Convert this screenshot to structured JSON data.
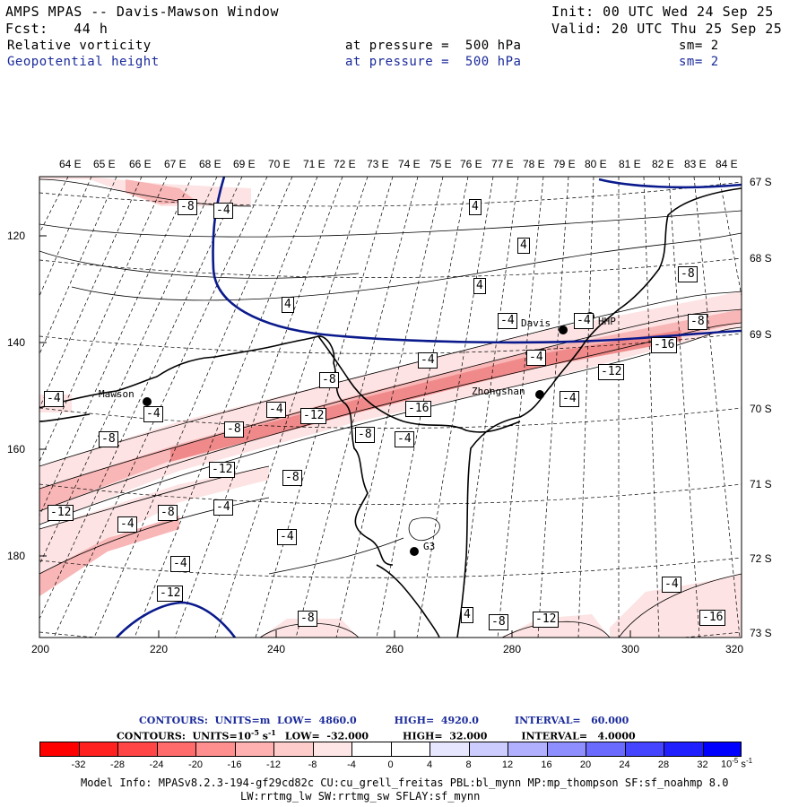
{
  "header": {
    "title": "AMPS MPAS -- Davis-Mawson Window",
    "init": "Init: 00 UTC Wed 24 Sep 25",
    "fcst": "Fcst:   44 h",
    "valid": "Valid: 20 UTC Thu 25 Sep 25",
    "field1_name": "Relative vorticity",
    "field1_level": "at pressure =  500 hPa",
    "field1_sm": "sm= 2",
    "field2_name": "Geopotential height",
    "field2_level": "at pressure =  500 hPa",
    "field2_sm": "sm= 2"
  },
  "map": {
    "lon_labels": [
      "64 E",
      "65 E",
      "66 E",
      "67 E",
      "68 E",
      "69 E",
      "70 E",
      "71 E",
      "72 E",
      "73 E",
      "74 E",
      "75 E",
      "76 E",
      "77 E",
      "78 E",
      "79 E",
      "80 E",
      "81 E",
      "82 E",
      "83 E",
      "84 E"
    ],
    "lat_labels": [
      "67 S",
      "68 S",
      "69 S",
      "70 S",
      "71 S",
      "72 S",
      "73 S"
    ],
    "y_ticks": [
      "120",
      "140",
      "160",
      "180"
    ],
    "x_ticks": [
      "200",
      "220",
      "240",
      "260",
      "280",
      "300",
      "320"
    ],
    "stations": [
      "Mawson",
      "Davis",
      "Zhongshan",
      "G3",
      "HHP"
    ],
    "contour_labels": [
      "-8",
      "-4",
      "4",
      "4",
      "4",
      "4",
      "-4",
      "-4",
      "-4",
      "-8",
      "-8",
      "-4",
      "-12",
      "-16",
      "-8",
      "-8",
      "-4",
      "-4",
      "-12",
      "-16",
      "-8",
      "-4",
      "-8",
      "-12",
      "-4",
      "-8",
      "-8",
      "-4",
      "-4",
      "-12",
      "-4",
      "-4",
      "-8",
      "-12",
      "-8",
      "4",
      "-4",
      "-8",
      "-16",
      "-12",
      "-4"
    ],
    "colors": {
      "geopotential": "#0a1a8c",
      "coast": "#000000",
      "shade_light": "#fde3e3",
      "shade_mid": "#f8b6b6",
      "shade_dark": "#f08a8a"
    }
  },
  "legend": {
    "line1_prefix": "CONTOURS:  UNITS=m  LOW=  4860.0",
    "line1_high": "HIGH=  4920.0",
    "line1_interval": "INTERVAL=   60.000",
    "line2_prefix": "CONTOURS:  UNITS=10",
    "line2_exp": "-5",
    "line2_unit": " s",
    "line2_exp2": "-1",
    "line2_low": "LOW=  -32.000",
    "line2_high": "HIGH=  32.000",
    "line2_interval": "INTERVAL=   4.0000",
    "colorbar_labels": [
      "-32",
      "-28",
      "-24",
      "-20",
      "-16",
      "-12",
      "-8",
      "-4",
      "0",
      "4",
      "8",
      "12",
      "16",
      "20",
      "24",
      "28",
      "32"
    ],
    "colorbar_units": "10",
    "colorbar_units_exp": "-5",
    "colorbar_units_tail": " s",
    "colorbar_units_exp2": "-1",
    "colorbar_colors": [
      "#ff0000",
      "#ff2020",
      "#ff4545",
      "#ff6a6a",
      "#ff8e8e",
      "#ffb0b0",
      "#ffcccc",
      "#ffe6e6",
      "#ffffff",
      "#ffffff",
      "#e6e6ff",
      "#ccccff",
      "#b0b0ff",
      "#8e8eff",
      "#6a6aff",
      "#4545ff",
      "#2020ff",
      "#0000ff"
    ]
  },
  "footer": {
    "line1": "Model Info: MPASv8.2.3-194-gf29cd82c CU:cu_grell_freitas PBL:bl_mynn MP:mp_thompson SF:sf_noahmp 8.0",
    "line2": "LW:rrtmg_lw SW:rrtmg_sw SFLAY:sf_mynn"
  }
}
